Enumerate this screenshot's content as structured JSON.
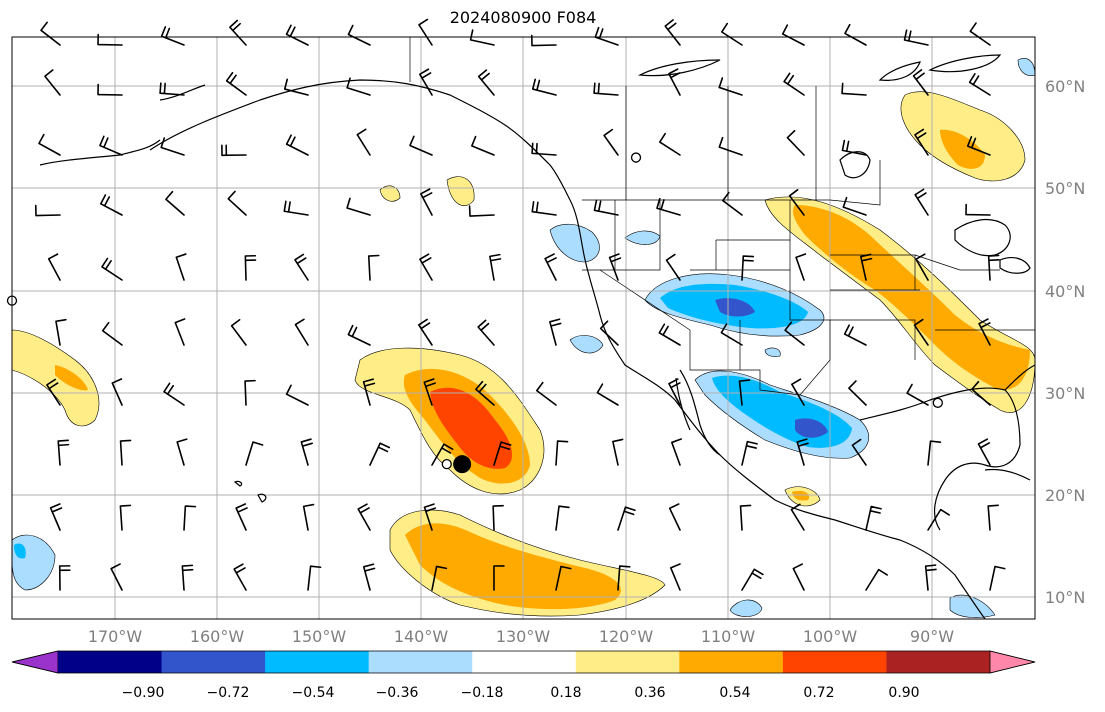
{
  "title": "2024080900 F084",
  "map": {
    "lon_range": [
      -180,
      -80
    ],
    "lat_range": [
      8,
      65
    ],
    "lat_labels": [
      "10°N",
      "20°N",
      "30°N",
      "40°N",
      "50°N",
      "60°N"
    ],
    "lon_labels": [
      "170°W",
      "160°W",
      "150°W",
      "140°W",
      "130°W",
      "120°W",
      "110°W",
      "100°W",
      "90°W"
    ],
    "gridlines": true
  },
  "colorbar": {
    "ticks": [
      "−0.90",
      "−0.72",
      "−0.54",
      "−0.36",
      "−0.18",
      "0.18",
      "0.36",
      "0.54",
      "0.72",
      "0.90"
    ],
    "colors": [
      "#9a33cc",
      "#000088",
      "#3355cc",
      "#00bbff",
      "#aaddff",
      "#ffffff",
      "#ffee88",
      "#ffaa00",
      "#ff4400",
      "#aa2222",
      "#ff88aa"
    ]
  },
  "markers": {
    "filled_dot": {
      "lon": -136,
      "lat": 23
    },
    "open_circles": [
      {
        "lon": -137.5,
        "lat": 23
      },
      {
        "lon": -180,
        "lat": 39
      },
      {
        "lon": -119,
        "lat": 53
      },
      {
        "lon": -89.5,
        "lat": 29
      }
    ]
  }
}
